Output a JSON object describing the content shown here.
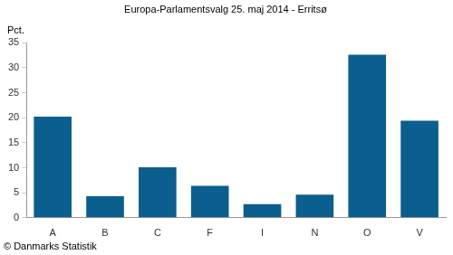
{
  "chart_data": {
    "type": "bar",
    "title": "Europa-Parlamentsvalg 25. maj 2014 - Erritsø",
    "ylabel": "Pct.",
    "annotations": [
      "© Danmarks Statistik"
    ],
    "categories": [
      "A",
      "B",
      "C",
      "F",
      "I",
      "N",
      "O",
      "V"
    ],
    "values": [
      20.2,
      4.3,
      10.1,
      6.4,
      2.7,
      4.6,
      32.6,
      19.4
    ],
    "color": "#0b5f8e",
    "ylim": [
      0,
      35
    ],
    "yticks": [
      0,
      5,
      10,
      15,
      20,
      25,
      30,
      35
    ],
    "grid": false
  }
}
